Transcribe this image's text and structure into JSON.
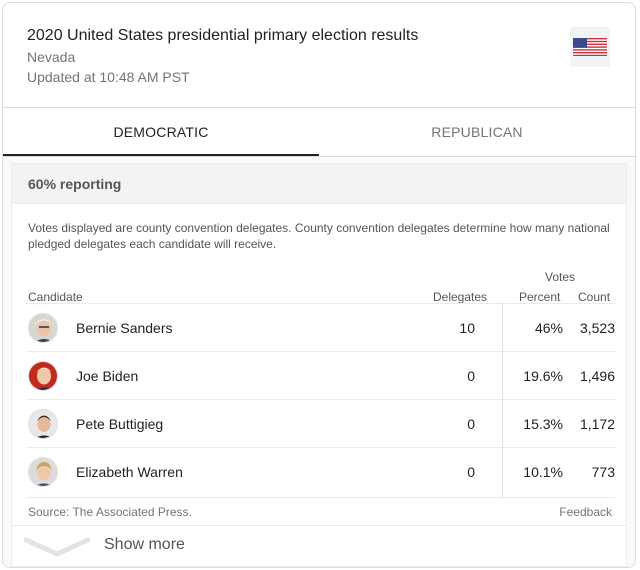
{
  "header": {
    "title": "2020 United States presidential primary election results",
    "state": "Nevada",
    "updated": "Updated at 10:48 AM PST",
    "flag_icon": "us-flag-icon"
  },
  "tabs": [
    {
      "label": "DEMOCRATIC",
      "selected": true
    },
    {
      "label": "REPUBLICAN",
      "selected": false
    }
  ],
  "results": {
    "reporting": "60% reporting",
    "note": "Votes displayed are county convention delegates. County convention delegates determine how many national pledged delegates each candidate will receive.",
    "columns": {
      "candidate": "Candidate",
      "delegates": "Delegates",
      "votes_group": "Votes",
      "percent": "Percent",
      "count": "Count"
    },
    "rows": [
      {
        "name": "Bernie Sanders",
        "delegates": "10",
        "percent": "46%",
        "count": "3,523"
      },
      {
        "name": "Joe Biden",
        "delegates": "0",
        "percent": "19.6%",
        "count": "1,496"
      },
      {
        "name": "Pete Buttigieg",
        "delegates": "0",
        "percent": "15.3%",
        "count": "1,172"
      },
      {
        "name": "Elizabeth Warren",
        "delegates": "0",
        "percent": "10.1%",
        "count": "773"
      }
    ],
    "source": "Source: The Associated Press.",
    "feedback": "Feedback",
    "show_more": "Show more"
  }
}
